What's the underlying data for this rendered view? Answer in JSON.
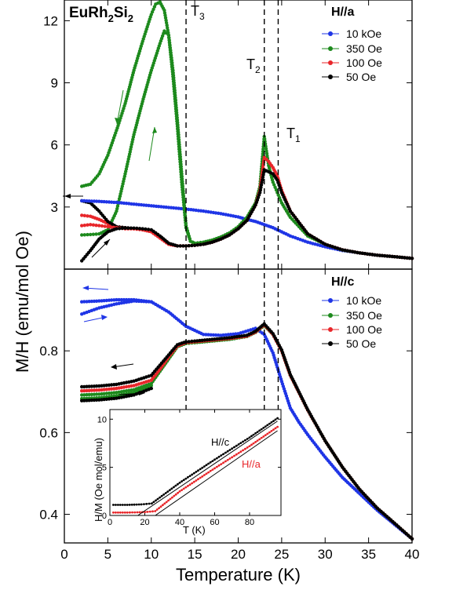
{
  "figure": {
    "compound_main": "EuRh",
    "compound_sub1": "2",
    "compound_mid": "Si",
    "compound_sub2": "2",
    "x_axis_title": "Temperature (K)",
    "y_axis_title": "M/H (emu/mol Oe)",
    "transition_labels": [
      {
        "main": "T",
        "sub": "3"
      },
      {
        "main": "T",
        "sub": "2"
      },
      {
        "main": "T",
        "sub": "1"
      }
    ]
  },
  "chart_data": [
    {
      "panel": "top",
      "type": "line",
      "legend_title": "H//a",
      "legend_placement": "top-right",
      "xlim": [
        0,
        40
      ],
      "ylim": [
        0,
        13
      ],
      "x_ticks": [
        0,
        5,
        10,
        15,
        20,
        25,
        30,
        35,
        40
      ],
      "y_ticks": [
        3,
        6,
        9,
        12
      ],
      "y_tick_labels": [
        "3",
        "6",
        "9",
        "12"
      ],
      "transition_lines": [
        14.0,
        23.0,
        24.6
      ],
      "series": [
        {
          "name": "10 kOe",
          "color": "#1f35e6",
          "x": [
            2,
            4,
            6,
            8,
            10,
            12,
            14,
            16,
            18,
            20,
            21,
            22,
            23,
            24,
            25,
            26,
            28,
            30,
            32,
            34,
            36,
            38,
            40
          ],
          "y": [
            3.3,
            3.27,
            3.22,
            3.14,
            3.06,
            2.98,
            2.9,
            2.8,
            2.68,
            2.52,
            2.4,
            2.3,
            2.15,
            2.0,
            1.8,
            1.6,
            1.3,
            1.08,
            0.9,
            0.78,
            0.67,
            0.6,
            0.52
          ]
        },
        {
          "name": "350 Oe",
          "color": "#1d8a1d",
          "x": [
            2,
            3,
            4,
            5,
            6,
            7,
            8,
            9,
            10,
            10.5,
            11,
            11.5,
            12,
            12.5,
            13,
            13.5,
            14,
            14.5,
            15,
            16,
            17,
            18,
            19,
            20,
            21,
            22,
            22.5,
            23,
            23.5,
            24,
            24.5,
            25,
            26,
            28,
            30,
            32,
            34,
            36,
            38,
            40
          ],
          "y": [
            4.0,
            4.1,
            4.6,
            5.5,
            6.7,
            8.0,
            9.6,
            11.0,
            12.3,
            12.8,
            12.9,
            12.5,
            11.3,
            9.3,
            6.9,
            4.2,
            2.0,
            1.35,
            1.25,
            1.3,
            1.4,
            1.55,
            1.75,
            2.05,
            2.5,
            3.2,
            4.0,
            6.4,
            5.0,
            4.2,
            3.7,
            3.2,
            2.5,
            1.6,
            1.2,
            0.92,
            0.78,
            0.67,
            0.6,
            0.52
          ]
        },
        {
          "name": "100 Oe",
          "color": "#e8262a",
          "x": [
            2,
            3,
            4,
            5,
            6,
            7,
            8,
            9,
            10,
            11,
            12,
            13,
            14,
            15,
            16,
            17,
            18,
            19,
            20,
            21,
            22,
            22.5,
            23,
            23.5,
            24,
            24.5,
            25,
            26,
            28,
            30,
            32,
            34,
            36,
            38,
            40
          ],
          "y": [
            2.1,
            2.15,
            2.1,
            2.05,
            2.0,
            1.95,
            1.95,
            1.9,
            1.8,
            1.5,
            1.2,
            1.12,
            1.12,
            1.15,
            1.2,
            1.3,
            1.45,
            1.65,
            1.95,
            2.35,
            3.1,
            3.8,
            5.4,
            5.2,
            4.9,
            4.5,
            3.8,
            2.8,
            1.7,
            1.2,
            0.93,
            0.78,
            0.67,
            0.6,
            0.52
          ]
        },
        {
          "name": "50 Oe",
          "color": "#000000",
          "x": [
            2,
            3,
            4,
            5,
            6,
            7,
            8,
            9,
            10,
            11,
            12,
            13,
            14,
            15,
            16,
            17,
            18,
            19,
            20,
            21,
            22,
            22.5,
            23,
            23.5,
            24,
            24.5,
            25,
            26,
            28,
            30,
            32,
            34,
            36,
            38,
            40
          ],
          "y": [
            0.4,
            0.9,
            1.45,
            1.8,
            1.95,
            1.98,
            1.98,
            1.95,
            1.9,
            1.6,
            1.25,
            1.12,
            1.12,
            1.15,
            1.2,
            1.3,
            1.45,
            1.65,
            1.95,
            2.35,
            3.1,
            3.7,
            4.8,
            4.7,
            4.6,
            4.3,
            3.7,
            2.8,
            1.7,
            1.2,
            0.93,
            0.78,
            0.67,
            0.6,
            0.52
          ]
        }
      ],
      "extra_curves": [
        {
          "color": "#1d8a1d",
          "x": [
            2,
            3,
            4,
            5,
            6,
            7,
            8,
            9,
            10,
            11,
            11.5,
            12,
            12.5,
            13,
            13.5,
            14,
            14.5,
            15
          ],
          "y": [
            1.65,
            1.67,
            1.7,
            1.9,
            2.8,
            4.6,
            6.5,
            8.1,
            9.6,
            10.9,
            11.5,
            11.3,
            9.6,
            7.2,
            4.6,
            2.1,
            1.35,
            1.25
          ]
        },
        {
          "color": "#e8262a",
          "x": [
            2,
            3,
            4,
            5,
            6,
            7,
            8,
            9,
            10
          ],
          "y": [
            2.6,
            2.55,
            2.4,
            2.2,
            2.05,
            2.0,
            1.95,
            1.9,
            1.85
          ]
        },
        {
          "color": "#000000",
          "x": [
            2,
            3,
            4,
            5,
            6,
            7,
            8,
            9,
            10
          ],
          "y": [
            3.3,
            3.2,
            2.8,
            2.3,
            2.05,
            2.0,
            1.97,
            1.93,
            1.88
          ]
        }
      ]
    },
    {
      "panel": "bottom",
      "type": "line",
      "legend_title": "H//c",
      "legend_placement": "top-right",
      "xlim": [
        0,
        40
      ],
      "ylim": [
        0.33,
        1.0
      ],
      "x_ticks": [
        0,
        5,
        10,
        15,
        20,
        25,
        30,
        35,
        40
      ],
      "x_tick_labels": [
        "0",
        "5",
        "10",
        "15",
        "20",
        "25",
        "30",
        "35",
        "40"
      ],
      "y_ticks": [
        0.4,
        0.6,
        0.8
      ],
      "y_tick_labels": [
        "0.4",
        "0.6",
        "0.8"
      ],
      "transition_lines": [
        14.0,
        23.0,
        24.6
      ],
      "series": [
        {
          "name": "10 kOe",
          "color": "#1f35e6",
          "x": [
            2,
            4,
            6,
            8,
            10,
            12,
            14,
            16,
            18,
            20,
            22,
            23,
            24,
            25,
            26,
            27,
            28,
            30,
            32,
            34,
            36,
            38,
            40
          ],
          "y": [
            0.92,
            0.922,
            0.925,
            0.925,
            0.92,
            0.895,
            0.86,
            0.84,
            0.838,
            0.842,
            0.855,
            0.84,
            0.795,
            0.725,
            0.66,
            0.625,
            0.595,
            0.54,
            0.49,
            0.45,
            0.41,
            0.375,
            0.34
          ]
        },
        {
          "name": "350 Oe",
          "color": "#1d8a1d",
          "x": [
            2,
            4,
            6,
            8,
            10,
            11,
            12,
            13,
            14,
            15,
            17,
            19,
            21,
            22,
            23,
            24,
            25,
            26,
            28,
            30,
            32,
            34,
            36,
            38,
            40
          ],
          "y": [
            0.692,
            0.694,
            0.698,
            0.705,
            0.72,
            0.75,
            0.78,
            0.81,
            0.818,
            0.82,
            0.824,
            0.828,
            0.835,
            0.845,
            0.862,
            0.84,
            0.8,
            0.74,
            0.655,
            0.58,
            0.515,
            0.46,
            0.415,
            0.378,
            0.34
          ]
        },
        {
          "name": "100 Oe",
          "color": "#e8262a",
          "x": [
            2,
            4,
            6,
            8,
            10,
            11,
            12,
            13,
            14,
            15,
            17,
            19,
            21,
            22,
            23,
            24,
            25,
            26,
            28,
            30,
            32,
            34,
            36,
            38,
            40
          ],
          "y": [
            0.702,
            0.704,
            0.708,
            0.715,
            0.728,
            0.755,
            0.785,
            0.812,
            0.82,
            0.822,
            0.826,
            0.83,
            0.836,
            0.846,
            0.864,
            0.84,
            0.8,
            0.74,
            0.655,
            0.58,
            0.515,
            0.46,
            0.415,
            0.378,
            0.34
          ]
        },
        {
          "name": "50 Oe",
          "color": "#000000",
          "x": [
            2,
            4,
            6,
            8,
            10,
            11,
            12,
            13,
            14,
            15,
            17,
            19,
            21,
            22,
            23,
            24,
            25,
            26,
            28,
            30,
            32,
            34,
            36,
            38,
            40
          ],
          "y": [
            0.712,
            0.714,
            0.718,
            0.726,
            0.74,
            0.765,
            0.79,
            0.815,
            0.822,
            0.824,
            0.828,
            0.832,
            0.838,
            0.848,
            0.866,
            0.842,
            0.802,
            0.742,
            0.656,
            0.58,
            0.515,
            0.46,
            0.415,
            0.378,
            0.34
          ]
        }
      ],
      "extra_curves": [
        {
          "color": "#1f35e6",
          "x": [
            2,
            4,
            6,
            8,
            10
          ],
          "y": [
            0.89,
            0.905,
            0.915,
            0.922,
            0.92
          ]
        },
        {
          "color": "#1d8a1d",
          "x": [
            2,
            4,
            6,
            8,
            10
          ],
          "y": [
            0.683,
            0.685,
            0.69,
            0.698,
            0.715
          ]
        },
        {
          "color": "#000000",
          "x": [
            2,
            4,
            6,
            8,
            10
          ],
          "y": [
            0.678,
            0.68,
            0.684,
            0.692,
            0.708
          ]
        }
      ]
    },
    {
      "panel": "inset",
      "type": "line",
      "xlabel": "T (K)",
      "ylabel": "H/M (Oe mol/emu)",
      "xlim": [
        0,
        98
      ],
      "ylim": [
        0,
        11
      ],
      "x_ticks": [
        0,
        20,
        40,
        60,
        80
      ],
      "y_ticks": [
        0,
        5,
        10
      ],
      "series": [
        {
          "name": "H//c",
          "color": "#000000",
          "x": [
            2,
            10,
            18,
            24,
            40,
            60,
            80,
            96
          ],
          "y": [
            1.1,
            1.1,
            1.15,
            1.25,
            3.4,
            5.8,
            8.1,
            10.1
          ]
        },
        {
          "name": "H//a",
          "color": "#e8262a",
          "x": [
            2,
            10,
            20,
            26,
            40,
            60,
            80,
            96
          ],
          "y": [
            0.3,
            0.3,
            0.35,
            0.45,
            2.5,
            4.9,
            7.2,
            9.2
          ]
        }
      ],
      "fit_lines": [
        {
          "color": "#000000",
          "x": [
            16,
            96
          ],
          "y": [
            0,
            9.8
          ]
        },
        {
          "color": "#000000",
          "x": [
            26,
            96
          ],
          "y": [
            0,
            8.8
          ]
        }
      ]
    }
  ]
}
